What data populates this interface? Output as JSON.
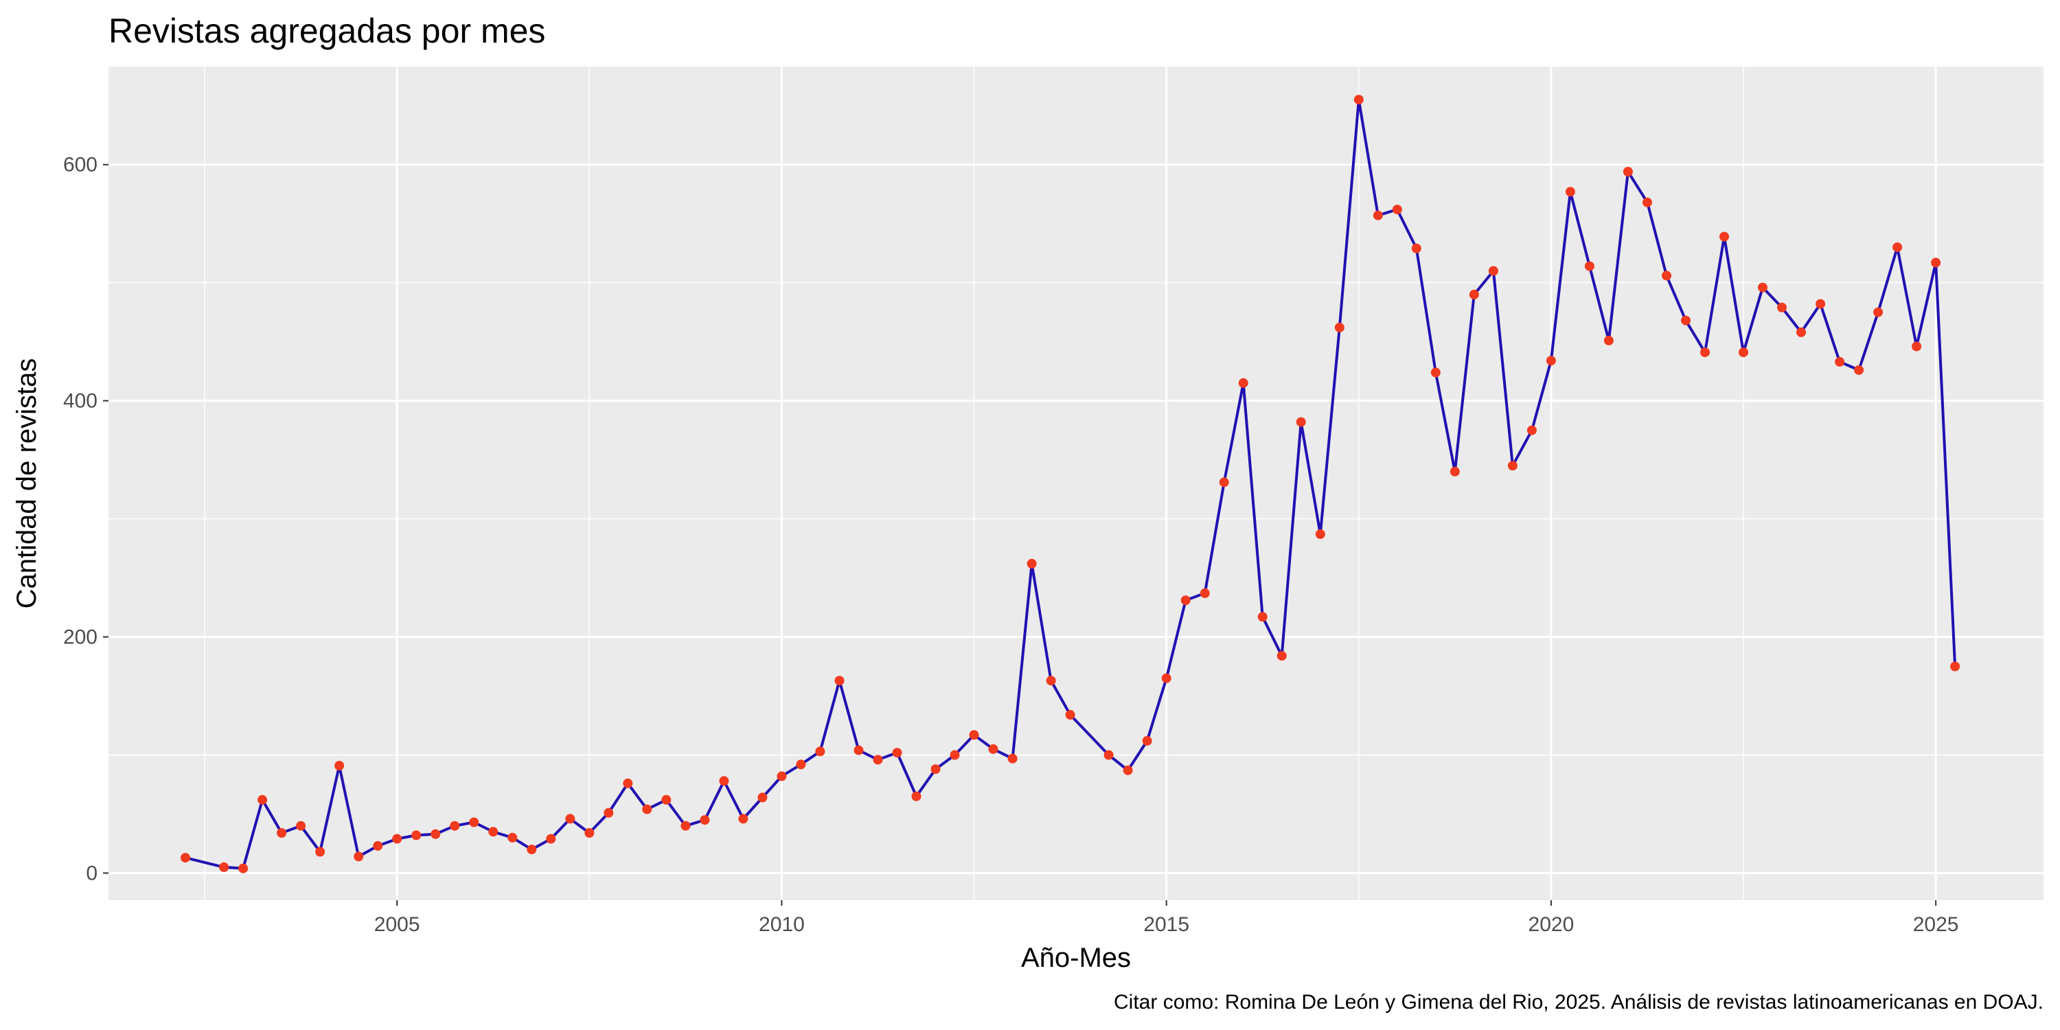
{
  "chart_data": {
    "type": "line",
    "title": "Revistas agregadas por mes",
    "xlabel": "Año-Mes",
    "ylabel": "Cantidad de revistas",
    "caption": "Citar como: Romina De León y Gimena del Rio, 2025. Análisis de revistas latinoamericanas en DOAJ.",
    "x_ticks": [
      "2005",
      "2010",
      "2015",
      "2020",
      "2025"
    ],
    "y_ticks": [
      "0",
      "200",
      "400",
      "600"
    ],
    "xlim": [
      2001.25,
      2026.4
    ],
    "ylim": [
      -23,
      683
    ],
    "grid": true,
    "legend": "none",
    "colors": {
      "line": "#2111B2",
      "points": "#F23A1E",
      "panel": "#EBEBEB",
      "grid": "#FFFFFF"
    },
    "series": [
      {
        "x": [
          2002.25,
          2002.75,
          2003.0,
          2003.25,
          2003.5,
          2003.75,
          2004.0,
          2004.25,
          2004.5,
          2004.75,
          2005.0,
          2005.25,
          2005.5,
          2005.75,
          2006.0,
          2006.25,
          2006.5,
          2006.75,
          2007.0,
          2007.25,
          2007.5,
          2007.75,
          2008.0,
          2008.25,
          2008.5,
          2008.75,
          2009.0,
          2009.25,
          2009.5,
          2009.75,
          2010.0,
          2010.25,
          2010.5,
          2010.75,
          2011.0,
          2011.25,
          2011.5,
          2011.75,
          2012.0,
          2012.25,
          2012.5,
          2012.75,
          2013.0,
          2013.25,
          2013.5,
          2013.75,
          2014.25,
          2014.5,
          2014.75,
          2015.0,
          2015.25,
          2015.5,
          2015.75,
          2016.0,
          2016.25,
          2016.5,
          2016.75,
          2017.0,
          2017.25,
          2017.5,
          2017.75,
          2018.0,
          2018.25,
          2018.5,
          2018.75,
          2019.0,
          2019.25,
          2019.5,
          2019.75,
          2020.0,
          2020.25,
          2020.5,
          2020.75,
          2021.0,
          2021.25,
          2021.5,
          2021.75,
          2022.0,
          2022.25,
          2022.5,
          2022.75,
          2023.0,
          2023.25,
          2023.5,
          2023.75,
          2024.0,
          2024.25,
          2024.5,
          2024.75,
          2025.0,
          2025.25
        ],
        "y": [
          13,
          5,
          4,
          62,
          34,
          40,
          18,
          91,
          14,
          23,
          29,
          32,
          33,
          40,
          43,
          35,
          30,
          20,
          29,
          46,
          34,
          51,
          76,
          54,
          62,
          40,
          45,
          78,
          46,
          64,
          82,
          92,
          103,
          163,
          104,
          96,
          102,
          65,
          88,
          100,
          117,
          105,
          97,
          262,
          163,
          134,
          100,
          87,
          112,
          165,
          231,
          237,
          331,
          415,
          217,
          184,
          382,
          287,
          462,
          655,
          557,
          562,
          529,
          424,
          340,
          490,
          510,
          345,
          375,
          434,
          577,
          514,
          451,
          594,
          568,
          506,
          468,
          441,
          539,
          441,
          496,
          479,
          458,
          482,
          433,
          426,
          475,
          530,
          446,
          517,
          175
        ]
      }
    ]
  }
}
